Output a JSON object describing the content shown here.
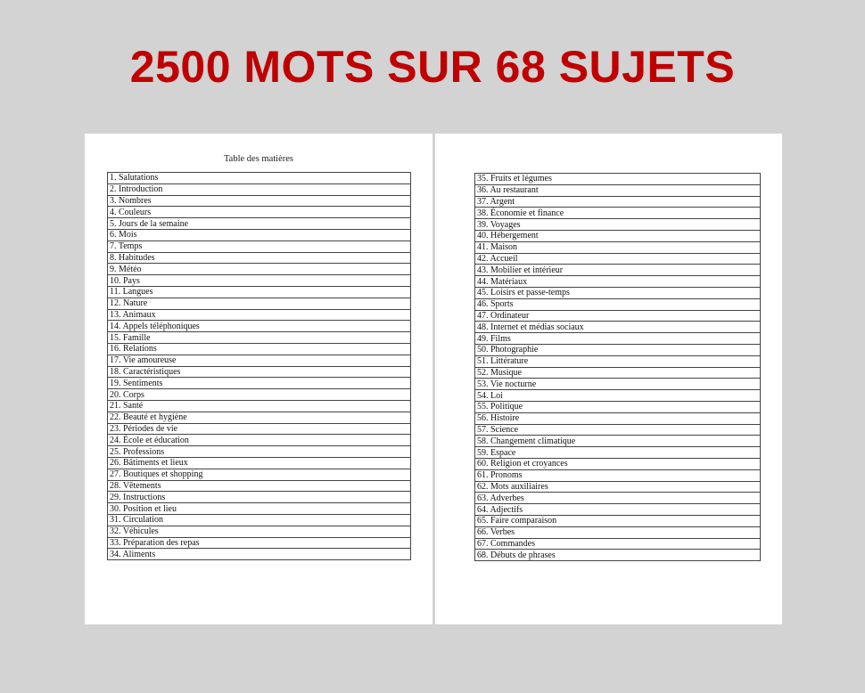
{
  "headline": "2500 MOTS SUR 68 SUJETS",
  "colors": {
    "headline": "#c00000",
    "background": "#d3d3d3"
  },
  "toc_title": "Table des matières",
  "left_items": [
    "1. Salutations",
    "2. Introduction",
    "3. Nombres",
    "4. Couleurs",
    "5. Jours de la semaine",
    "6. Mois",
    "7. Temps",
    "8. Habitudes",
    "9. Météo",
    "10. Pays",
    "11. Langues",
    "12. Nature",
    "13. Animaux",
    "14. Appels téléphoniques",
    "15. Famille",
    "16. Relations",
    "17. Vie amoureuse",
    "18. Caractéristiques",
    "19. Sentiments",
    "20. Corps",
    "21. Santé",
    "22. Beauté et hygiène",
    "23. Périodes de vie",
    "24. École et éducation",
    "25. Professions",
    "26. Bâtiments et lieux",
    "27. Boutiques et shopping",
    "28. Vêtements",
    "29. Instructions",
    "30. Position et lieu",
    "31. Circulation",
    "32. Véhicules",
    "33. Préparation des repas",
    "34. Aliments"
  ],
  "right_items": [
    "35. Fruits et légumes",
    "36. Au restaurant",
    "37. Argent",
    "38. Économie et finance",
    "39. Voyages",
    "40. Hébergement",
    "41. Maison",
    "42. Accueil",
    "43. Mobilier et intérieur",
    "44. Matériaux",
    "45. Loisirs et passe-temps",
    "46. Sports",
    "47. Ordinateur",
    "48. Internet et médias sociaux",
    "49. Films",
    "50. Photographie",
    "51. Littérature",
    "52. Musique",
    "53. Vie nocturne",
    "54. Loi",
    "55. Politique",
    "56. Histoire",
    "57. Science",
    "58. Changement climatique",
    "59. Espace",
    "60. Religion et croyances",
    "61. Pronoms",
    "62. Mots auxiliaires",
    "63. Adverbes",
    "64. Adjectifs",
    "65. Faire comparaison",
    "66. Verbes",
    "67. Commandes",
    "68. Débuts de phrases"
  ]
}
